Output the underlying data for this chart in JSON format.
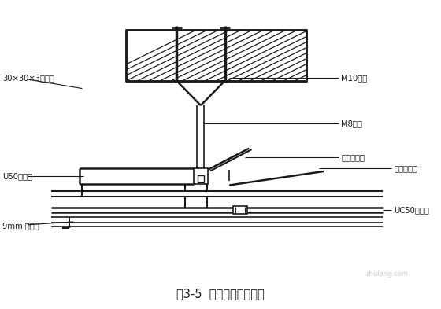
{
  "title": "图3-5  石膏板吊顶剖面图",
  "bg_color": "#ffffff",
  "line_color": "#1a1a1a",
  "labels": {
    "angle_steel": "30×30×3角钢件",
    "bolt": "M10胀栓",
    "hanger": "M8吊筋",
    "main_clip": "主龙骨吊件",
    "main_keel": "U50主龙骨",
    "sub_clip": "次龙骨吊件",
    "sub_keel": "UC50次龙骨",
    "gypsum": "9mm 石膏板"
  },
  "figsize": [
    5.6,
    3.93
  ],
  "dpi": 100
}
